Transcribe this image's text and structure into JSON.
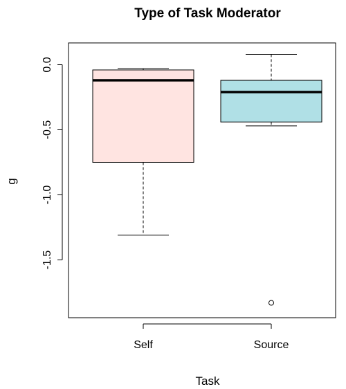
{
  "chart_data": {
    "type": "box",
    "title": "Type of Task Moderator",
    "xlabel": "Task",
    "ylabel": "g",
    "ylim": [
      -1.85,
      0.15
    ],
    "yticks": [
      0.0,
      -0.5,
      -1.0,
      -1.5
    ],
    "ytick_labels": [
      "0.0",
      "-0.5",
      "-1.0",
      "-1.5"
    ],
    "categories": [
      "Self",
      "Source"
    ],
    "boxes": [
      {
        "category": "Self",
        "whisker_low": -1.31,
        "q1": -0.75,
        "median": -0.12,
        "q3": -0.04,
        "whisker_high": -0.03,
        "outliers": [],
        "color": "#FFE4E1"
      },
      {
        "category": "Source",
        "whisker_low": -0.47,
        "q1": -0.44,
        "median": -0.21,
        "q3": -0.12,
        "whisker_high": 0.08,
        "outliers": [
          -1.83
        ],
        "color": "#B0E0E6"
      }
    ]
  }
}
